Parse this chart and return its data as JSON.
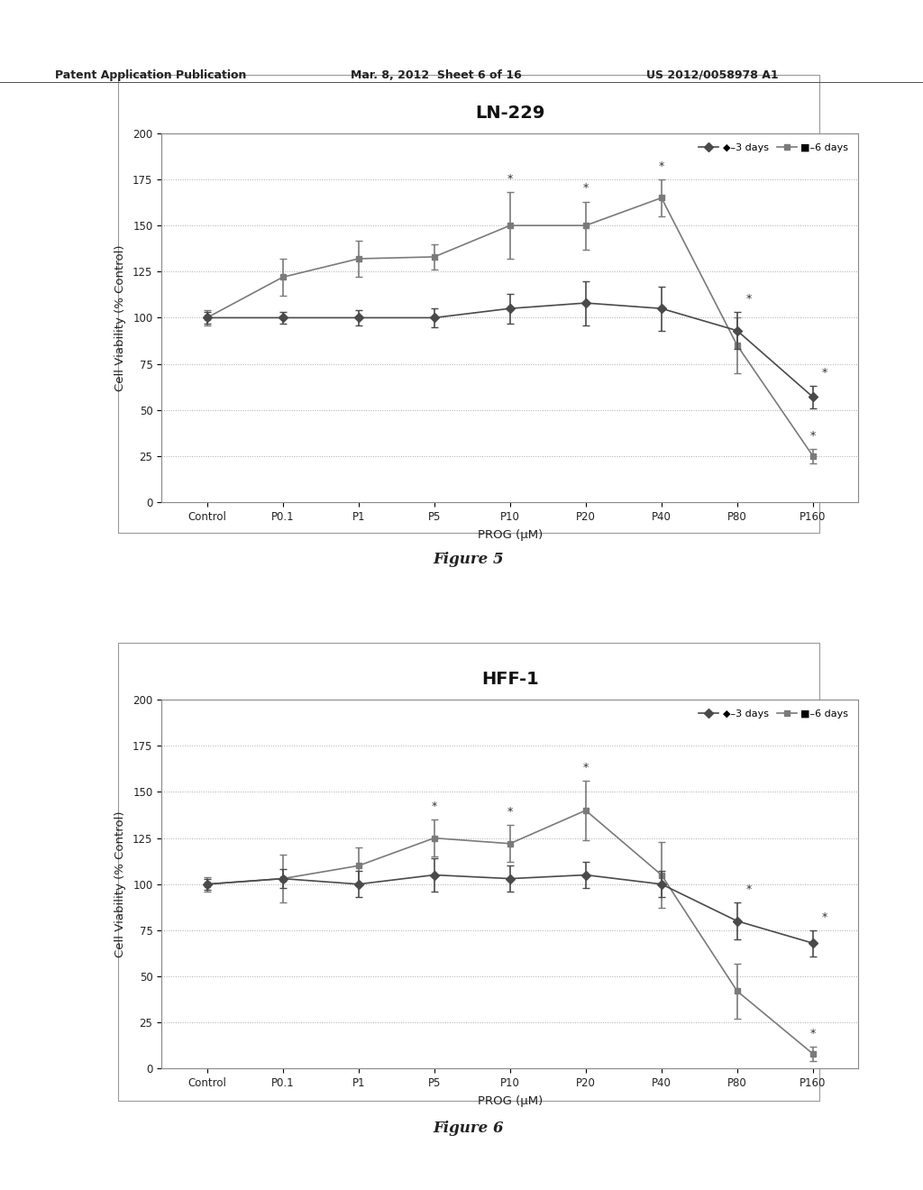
{
  "fig1": {
    "title": "LN-229",
    "xlabel": "PROG (μM)",
    "ylabel": "Cell Viability (% Control)",
    "categories": [
      "Control",
      "P0.1",
      "P1",
      "P5",
      "P10",
      "P20",
      "P40",
      "P80",
      "P160"
    ],
    "series1_values": [
      100,
      100,
      100,
      100,
      105,
      108,
      105,
      93,
      57
    ],
    "series2_values": [
      100,
      122,
      132,
      133,
      150,
      150,
      165,
      85,
      25
    ],
    "series1_errors": [
      3,
      3,
      4,
      5,
      8,
      12,
      12,
      10,
      6
    ],
    "series2_errors": [
      4,
      10,
      10,
      7,
      18,
      13,
      10,
      15,
      4
    ],
    "ylim": [
      0,
      200
    ],
    "yticks": [
      0,
      25,
      50,
      75,
      100,
      125,
      150,
      175,
      200
    ],
    "star_s1": [
      7,
      8
    ],
    "star_s2": [
      4,
      5,
      6,
      8
    ],
    "figure_label": "Figure 5"
  },
  "fig2": {
    "title": "HFF-1",
    "xlabel": "PROG (μM)",
    "ylabel": "Cell Viability (% Control)",
    "categories": [
      "Control",
      "P0.1",
      "P1",
      "P5",
      "P10",
      "P20",
      "P40",
      "P80",
      "P160"
    ],
    "series1_values": [
      100,
      103,
      100,
      105,
      103,
      105,
      100,
      80,
      68
    ],
    "series2_values": [
      100,
      103,
      110,
      125,
      122,
      140,
      105,
      42,
      8
    ],
    "series1_errors": [
      3,
      5,
      7,
      9,
      7,
      7,
      7,
      10,
      7
    ],
    "series2_errors": [
      4,
      13,
      10,
      10,
      10,
      16,
      18,
      15,
      4
    ],
    "ylim": [
      0,
      200
    ],
    "yticks": [
      0,
      25,
      50,
      75,
      100,
      125,
      150,
      175,
      200
    ],
    "star_s1": [
      7,
      8
    ],
    "star_s2": [
      3,
      4,
      5,
      8
    ],
    "figure_label": "Figure 6"
  },
  "header_left": "Patent Application Publication",
  "header_mid": "Mar. 8, 2012  Sheet 6 of 16",
  "header_right": "US 2012/0058978 A1",
  "line_color_s1": "#4a4a4a",
  "line_color_s2": "#7a7a7a",
  "marker_s1": "D",
  "marker_s2": "s",
  "grid_color": "#aaaaaa",
  "border_color": "#999999",
  "background_color": "#ffffff",
  "plot_bg": "#ffffff"
}
